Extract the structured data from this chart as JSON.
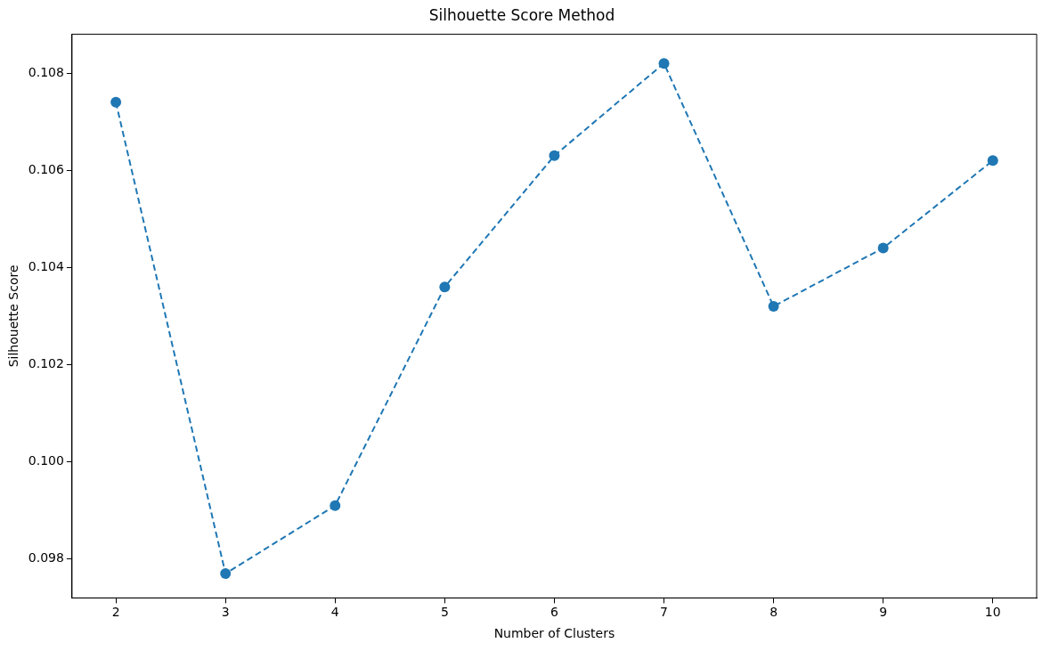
{
  "chart_data": {
    "type": "line",
    "title": "Silhouette Score Method",
    "xlabel": "Number of Clusters",
    "ylabel": "Silhouette Score",
    "x": [
      2,
      3,
      4,
      5,
      6,
      7,
      8,
      9,
      10
    ],
    "series": [
      {
        "color": "#1f77b4",
        "values": [
          0.1074,
          0.0977,
          0.0991,
          0.1036,
          0.1063,
          0.1082,
          0.1032,
          0.1044,
          0.1062
        ]
      }
    ],
    "xlim": [
      1.6,
      10.4
    ],
    "xticks": [
      2,
      3,
      4,
      5,
      6,
      7,
      8,
      9,
      10
    ],
    "ylim": [
      0.0972,
      0.1088
    ],
    "yticks": [
      {
        "value": 0.098,
        "label": "0.098"
      },
      {
        "value": 0.1,
        "label": "0.100"
      },
      {
        "value": 0.102,
        "label": "0.102"
      },
      {
        "value": 0.104,
        "label": "0.104"
      },
      {
        "value": 0.106,
        "label": "0.106"
      },
      {
        "value": 0.108,
        "label": "0.108"
      }
    ],
    "grid": false,
    "legend": false,
    "marker": "circle",
    "line_style": "dashed"
  }
}
